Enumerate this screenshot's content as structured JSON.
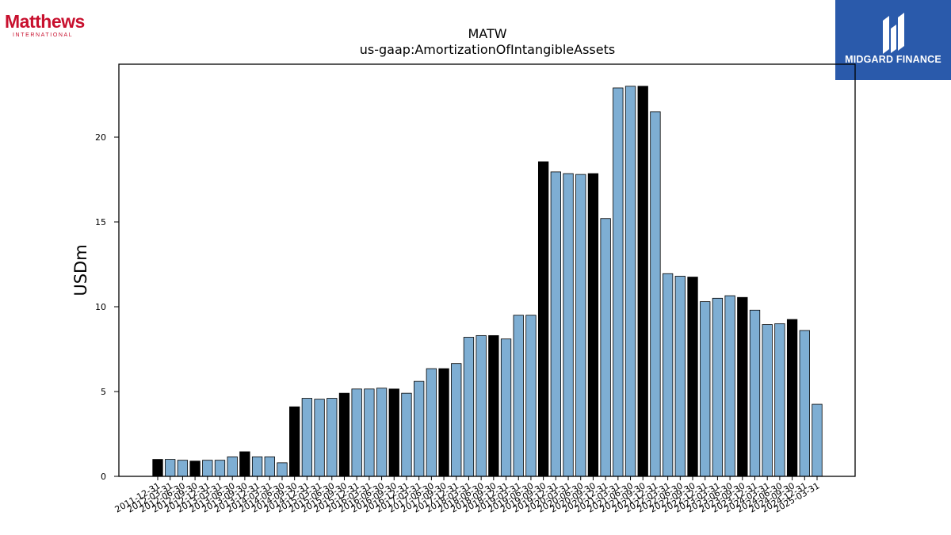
{
  "brand": {
    "name": "Matthews",
    "subtitle": "INTERNATIONAL",
    "color": "#c8102e"
  },
  "partner": {
    "name": "MIDGARD FINANCE",
    "color": "#2a5aab"
  },
  "chart_data": {
    "type": "bar",
    "title": "MATW",
    "subtitle": "us-gaap:AmortizationOfIntangibleAssets",
    "ylabel": "USDm",
    "xlabel": "",
    "ylim": [
      0,
      24.3
    ],
    "yticks": [
      0,
      5,
      10,
      15,
      20
    ],
    "grid": false,
    "colors": {
      "quarterly": "#7eaed3",
      "fiscal_year_end": "#000000"
    },
    "categories": [
      "2011-12-31",
      "2012-03-31",
      "2012-06-30",
      "2012-09-30",
      "2012-12-31",
      "2013-03-31",
      "2013-06-30",
      "2013-09-30",
      "2013-12-31",
      "2014-03-31",
      "2014-06-30",
      "2014-09-30",
      "2014-12-31",
      "2015-03-31",
      "2015-06-30",
      "2015-09-30",
      "2015-12-31",
      "2016-03-31",
      "2016-06-30",
      "2016-09-30",
      "2016-12-31",
      "2017-03-31",
      "2017-06-30",
      "2017-09-30",
      "2017-12-31",
      "2018-03-31",
      "2018-06-30",
      "2018-09-30",
      "2018-12-31",
      "2019-03-31",
      "2019-06-30",
      "2019-09-30",
      "2019-12-31",
      "2020-03-31",
      "2020-06-30",
      "2020-09-30",
      "2020-12-31",
      "2021-03-31",
      "2021-06-30",
      "2021-09-30",
      "2021-12-31",
      "2022-03-31",
      "2022-06-30",
      "2022-09-30",
      "2022-12-31",
      "2023-03-31",
      "2023-06-30",
      "2023-09-30",
      "2023-12-31",
      "2024-03-31",
      "2024-06-30",
      "2024-09-30",
      "2024-12-31",
      "2025-03-31"
    ],
    "values": [
      1.0,
      1.0,
      0.95,
      0.9,
      0.95,
      0.95,
      1.15,
      1.45,
      1.15,
      1.15,
      0.8,
      4.1,
      4.6,
      4.55,
      4.6,
      4.9,
      5.15,
      5.15,
      5.2,
      5.15,
      4.9,
      5.6,
      6.35,
      6.35,
      6.65,
      8.2,
      8.3,
      8.3,
      8.1,
      9.5,
      9.5,
      18.55,
      17.95,
      17.85,
      17.8,
      17.85,
      15.2,
      22.9,
      23.0,
      23.0,
      21.5,
      11.95,
      11.8,
      11.75,
      10.3,
      10.5,
      10.65,
      10.55,
      9.8,
      8.95,
      9.0,
      9.25,
      8.6,
      4.25
    ],
    "fiscal_year_end": [
      true,
      false,
      false,
      true,
      false,
      false,
      false,
      true,
      false,
      false,
      false,
      true,
      false,
      false,
      false,
      true,
      false,
      false,
      false,
      true,
      false,
      false,
      false,
      true,
      false,
      false,
      false,
      true,
      false,
      false,
      false,
      true,
      false,
      false,
      false,
      true,
      false,
      false,
      false,
      true,
      false,
      false,
      false,
      true,
      false,
      false,
      false,
      true,
      false,
      false,
      false,
      true,
      false,
      false
    ]
  }
}
